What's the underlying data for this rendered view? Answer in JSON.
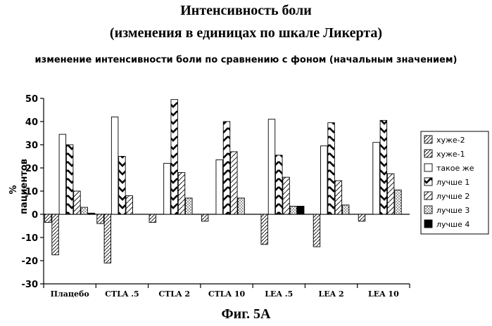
{
  "chart_data": {
    "type": "bar",
    "title": "Интенсивность боли",
    "title_line2": "(изменения в единицах по шкале Ликерта)",
    "subtitle": "изменение интенсивности боли по сравнению с фоном (начальным значением)",
    "ylabel": "% пациентов",
    "xlabel": "",
    "caption": "Фиг. 5А",
    "ylim": [
      -30,
      50
    ],
    "yticks": [
      "50",
      "40",
      "30",
      "20",
      "10",
      "0",
      "-10",
      "-20",
      "-30"
    ],
    "categories": [
      "Плацебо",
      "CTLA .5",
      "CTLA 2",
      "CTLA 10",
      "LEA .5",
      "LEA 2",
      "LEA 10"
    ],
    "legend_position": "right",
    "series": [
      {
        "name": "хуже-2",
        "pattern": "hatch-fine",
        "values": [
          -3.5,
          -4,
          -3.5,
          -3,
          0,
          0,
          -3
        ]
      },
      {
        "name": "хуже-1",
        "pattern": "hatch-fine",
        "values": [
          -17.5,
          -21,
          0,
          0,
          -13,
          -14,
          0
        ]
      },
      {
        "name": "такое же",
        "pattern": "empty",
        "values": [
          34.5,
          42,
          22,
          23.5,
          41,
          29.5,
          31
        ]
      },
      {
        "name": "лучше 1",
        "pattern": "chevron",
        "values": [
          30,
          25,
          49.5,
          40,
          25.5,
          39.5,
          40.5
        ]
      },
      {
        "name": "лучше 2",
        "pattern": "hatch-wide",
        "values": [
          10,
          8,
          18,
          27,
          16,
          14.5,
          17.5
        ]
      },
      {
        "name": "лучше 3",
        "pattern": "dots",
        "values": [
          3,
          0,
          7,
          7,
          3.5,
          4,
          10.5
        ]
      },
      {
        "name": "лучше 4",
        "pattern": "solid",
        "values": [
          0.5,
          0,
          0,
          0,
          3.5,
          0,
          0
        ]
      }
    ]
  }
}
